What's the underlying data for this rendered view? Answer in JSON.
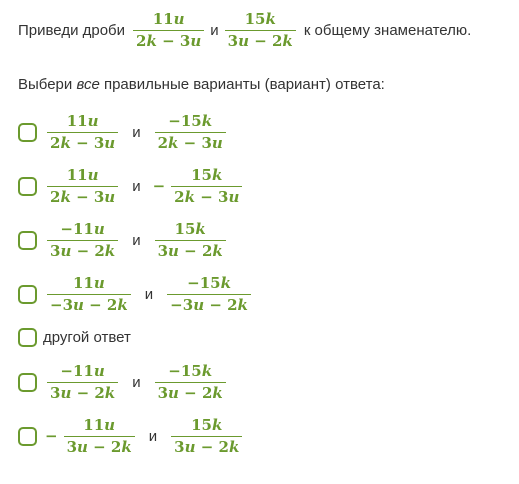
{
  "question": {
    "prefix": "Приведи дроби",
    "frac1": {
      "num": "11u",
      "den": "2k − 3u"
    },
    "conj": "и",
    "frac2": {
      "num": "15k",
      "den": "3u − 2k"
    },
    "suffix": "к общему знаменателю."
  },
  "prompt": {
    "before": "Выбери ",
    "emph": "все",
    "after": " правильные варианты (вариант) ответа:"
  },
  "options": [
    {
      "a_num": "11u",
      "a_den": "2k − 3u",
      "conj": "и",
      "b_num": "−15k",
      "b_den": "2k − 3u"
    },
    {
      "a_num": "11u",
      "a_den": "2k − 3u",
      "conj": "и",
      "b_sign": "−",
      "b_num": "15k",
      "b_den": "2k − 3u"
    },
    {
      "a_num": "−11u",
      "a_den": "3u − 2k",
      "conj": "и",
      "b_num": "15k",
      "b_den": "3u − 2k"
    },
    {
      "a_num": "11u",
      "a_den": "−3u − 2k",
      "conj": "и",
      "b_num": "−15k",
      "b_den": "−3u − 2k"
    },
    {
      "text": "другой ответ"
    },
    {
      "a_num": "−11u",
      "a_den": "3u − 2k",
      "conj": "и",
      "b_num": "−15k",
      "b_den": "3u − 2k"
    },
    {
      "a_sign": "−",
      "a_num": "11u",
      "a_den": "3u − 2k",
      "conj": "и",
      "b_num": "15k",
      "b_den": "3u − 2k"
    }
  ],
  "colors": {
    "accent": "#6b9a2e",
    "text": "#333333"
  }
}
